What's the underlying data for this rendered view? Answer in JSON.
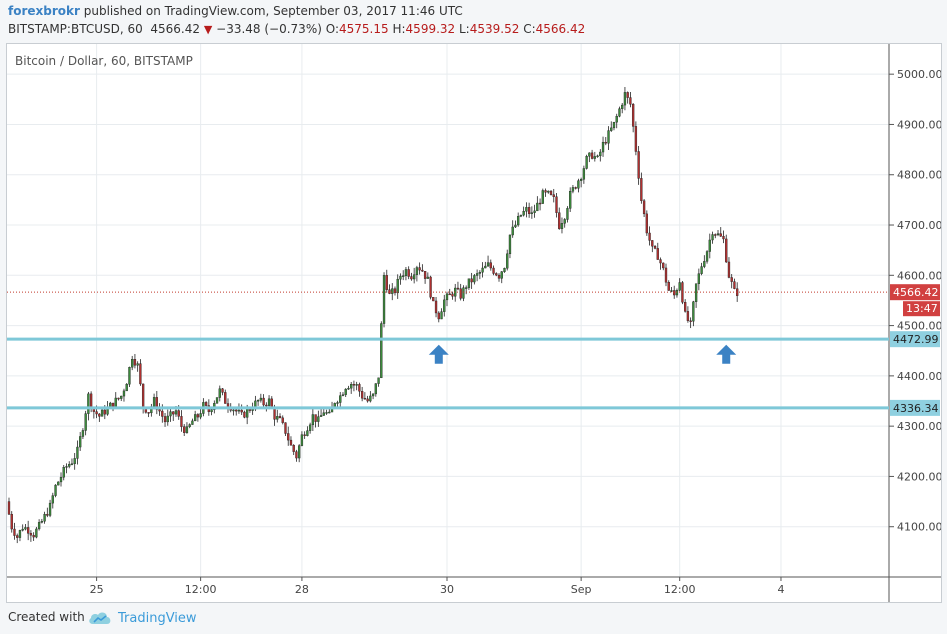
{
  "header": {
    "author": "forexbrokr",
    "published_text": " published on TradingView.com, September 03, 2017 11:46 UTC",
    "symbol_interval": "BITSTAMP:BTCUSD, 60",
    "last_price": "4566.42",
    "change": "−33.48 (−0.73%)",
    "open_label": "O:",
    "open": "4575.15",
    "high_label": "H:",
    "high": "4599.32",
    "low_label": "L:",
    "low": "4539.52",
    "close_label": "C:",
    "close": "4566.42"
  },
  "chart_data": {
    "type": "candlestick",
    "title": "Bitcoin / Dollar, 60, BITSTAMP",
    "x_tick_labels": [
      "25",
      "12:00",
      "28",
      "30",
      "Sep",
      "12:00",
      "4"
    ],
    "y_tick_labels": [
      "5000.00",
      "4900.00",
      "4800.00",
      "4700.00",
      "4600.00",
      "4500.00",
      "4400.00",
      "4300.00",
      "4200.00",
      "4100.00"
    ],
    "y_ticks": [
      5000,
      4900,
      4800,
      4700,
      4600,
      4500,
      4400,
      4300,
      4200,
      4100
    ],
    "ylim": [
      4000,
      5060
    ],
    "last_price_label": "4566.42",
    "last_price": 4566.42,
    "countdown_label": "13:47",
    "horizontal_lines": [
      {
        "value": 4472.99,
        "label": "4472.99"
      },
      {
        "value": 4336.34,
        "label": "4336.34"
      }
    ],
    "arrow_annotations": [
      {
        "x_index": 157,
        "value": 4450
      },
      {
        "x_index": 262,
        "value": 4450
      }
    ],
    "grid": true,
    "price_path": [
      [
        0,
        4150
      ],
      [
        2,
        4100
      ],
      [
        4,
        4080
      ],
      [
        6,
        4100
      ],
      [
        8,
        4095
      ],
      [
        10,
        4085
      ],
      [
        12,
        4100
      ],
      [
        14,
        4120
      ],
      [
        16,
        4140
      ],
      [
        18,
        4180
      ],
      [
        20,
        4200
      ],
      [
        22,
        4220
      ],
      [
        24,
        4230
      ],
      [
        26,
        4250
      ],
      [
        28,
        4300
      ],
      [
        30,
        4360
      ],
      [
        32,
        4330
      ],
      [
        34,
        4320
      ],
      [
        36,
        4330
      ],
      [
        38,
        4340
      ],
      [
        40,
        4350
      ],
      [
        42,
        4360
      ],
      [
        44,
        4390
      ],
      [
        46,
        4440
      ],
      [
        48,
        4420
      ],
      [
        50,
        4340
      ],
      [
        52,
        4330
      ],
      [
        54,
        4350
      ],
      [
        56,
        4330
      ],
      [
        58,
        4310
      ],
      [
        60,
        4320
      ],
      [
        62,
        4330
      ],
      [
        64,
        4300
      ],
      [
        66,
        4290
      ],
      [
        68,
        4310
      ],
      [
        70,
        4320
      ],
      [
        72,
        4340
      ],
      [
        74,
        4330
      ],
      [
        76,
        4350
      ],
      [
        78,
        4370
      ],
      [
        80,
        4350
      ],
      [
        82,
        4340
      ],
      [
        84,
        4330
      ],
      [
        86,
        4320
      ],
      [
        88,
        4330
      ],
      [
        90,
        4340
      ],
      [
        92,
        4350
      ],
      [
        94,
        4345
      ],
      [
        96,
        4350
      ],
      [
        98,
        4320
      ],
      [
        100,
        4310
      ],
      [
        102,
        4290
      ],
      [
        104,
        4260
      ],
      [
        106,
        4240
      ],
      [
        108,
        4280
      ],
      [
        110,
        4300
      ],
      [
        112,
        4320
      ],
      [
        114,
        4310
      ],
      [
        116,
        4330
      ],
      [
        118,
        4320
      ],
      [
        120,
        4350
      ],
      [
        122,
        4360
      ],
      [
        124,
        4380
      ],
      [
        126,
        4385
      ],
      [
        128,
        4380
      ],
      [
        130,
        4360
      ],
      [
        132,
        4350
      ],
      [
        134,
        4360
      ],
      [
        136,
        4400
      ],
      [
        138,
        4600
      ],
      [
        140,
        4560
      ],
      [
        142,
        4570
      ],
      [
        144,
        4600
      ],
      [
        146,
        4610
      ],
      [
        148,
        4600
      ],
      [
        150,
        4620
      ],
      [
        152,
        4610
      ],
      [
        154,
        4590
      ],
      [
        156,
        4540
      ],
      [
        158,
        4520
      ],
      [
        160,
        4550
      ],
      [
        162,
        4560
      ],
      [
        164,
        4570
      ],
      [
        166,
        4560
      ],
      [
        168,
        4580
      ],
      [
        170,
        4590
      ],
      [
        172,
        4600
      ],
      [
        174,
        4610
      ],
      [
        176,
        4620
      ],
      [
        178,
        4610
      ],
      [
        180,
        4600
      ],
      [
        182,
        4620
      ],
      [
        184,
        4680
      ],
      [
        186,
        4700
      ],
      [
        188,
        4720
      ],
      [
        190,
        4730
      ],
      [
        192,
        4720
      ],
      [
        194,
        4740
      ],
      [
        196,
        4760
      ],
      [
        198,
        4760
      ],
      [
        200,
        4750
      ],
      [
        202,
        4700
      ],
      [
        204,
        4720
      ],
      [
        206,
        4760
      ],
      [
        208,
        4780
      ],
      [
        210,
        4800
      ],
      [
        212,
        4830
      ],
      [
        214,
        4840
      ],
      [
        216,
        4830
      ],
      [
        218,
        4860
      ],
      [
        220,
        4880
      ],
      [
        222,
        4900
      ],
      [
        224,
        4930
      ],
      [
        226,
        4960
      ],
      [
        228,
        4940
      ],
      [
        230,
        4850
      ],
      [
        232,
        4750
      ],
      [
        234,
        4690
      ],
      [
        236,
        4650
      ],
      [
        238,
        4640
      ],
      [
        240,
        4610
      ],
      [
        242,
        4570
      ],
      [
        244,
        4560
      ],
      [
        246,
        4590
      ],
      [
        248,
        4520
      ],
      [
        250,
        4500
      ],
      [
        252,
        4580
      ],
      [
        254,
        4620
      ],
      [
        256,
        4650
      ],
      [
        258,
        4690
      ],
      [
        260,
        4680
      ],
      [
        262,
        4670
      ],
      [
        264,
        4600
      ],
      [
        266,
        4566.42
      ]
    ],
    "n_bars": 320
  },
  "footer": {
    "created_with": "Created with",
    "brand": "TradingView"
  },
  "colors": {
    "up_candle": "#3c8a3c",
    "down_candle": "#b03030",
    "support_line": "#7ec8d8",
    "price_line": "#c0392b",
    "arrow": "#3b82c4",
    "label_bg_red": "#d14040",
    "label_bg_blue": "#8fd0e0"
  }
}
